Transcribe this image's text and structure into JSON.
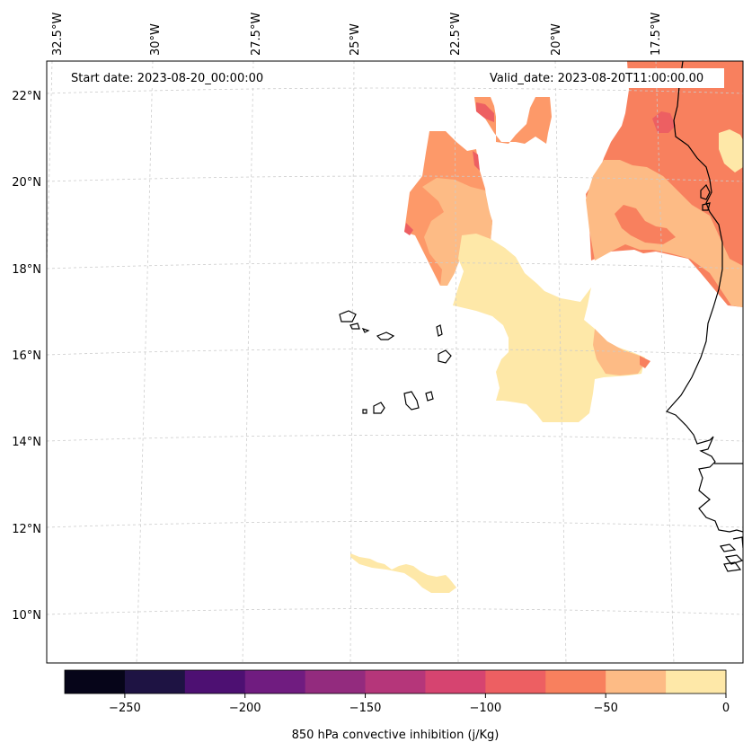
{
  "map": {
    "projection": "lambert-conformal",
    "lon_labels": [
      "32.5°W",
      "30°W",
      "27.5°W",
      "25°W",
      "22.5°W",
      "20°W",
      "17.5°W"
    ],
    "lat_labels": [
      "22°N",
      "20°N",
      "18°N",
      "16°N",
      "14°N",
      "12°N",
      "10°N"
    ],
    "start_date_text": "Start date: 2023-08-20_00:00:00",
    "valid_date_text": "Valid_date: 2023-08-20T11:00:00.00",
    "gridlines": "dashed light gray"
  },
  "colorbar": {
    "label": "850 hPa convective inhibition (j/Kg)",
    "ticks": [
      "−250",
      "−200",
      "−150",
      "−100",
      "−50",
      "0"
    ],
    "tick_values": [
      -250,
      -200,
      -150,
      -100,
      -50,
      0
    ],
    "range": [
      -275,
      0
    ],
    "colors": [
      "#07051b",
      "#231151",
      "#410f75",
      "#5f187f",
      "#7b2382",
      "#982d80",
      "#b73779",
      "#d3436e",
      "#eb5760",
      "#f8765c",
      "#fd9969",
      "#febb81",
      "#fddc9e"
    ],
    "display_colors": [
      "#060519",
      "#1e1343",
      "#4d1072",
      "#701c80",
      "#932b7e",
      "#b5367a",
      "#d64470",
      "#ed5f62",
      "#f8805e",
      "#fdbb85",
      "#fee8a8"
    ]
  }
}
